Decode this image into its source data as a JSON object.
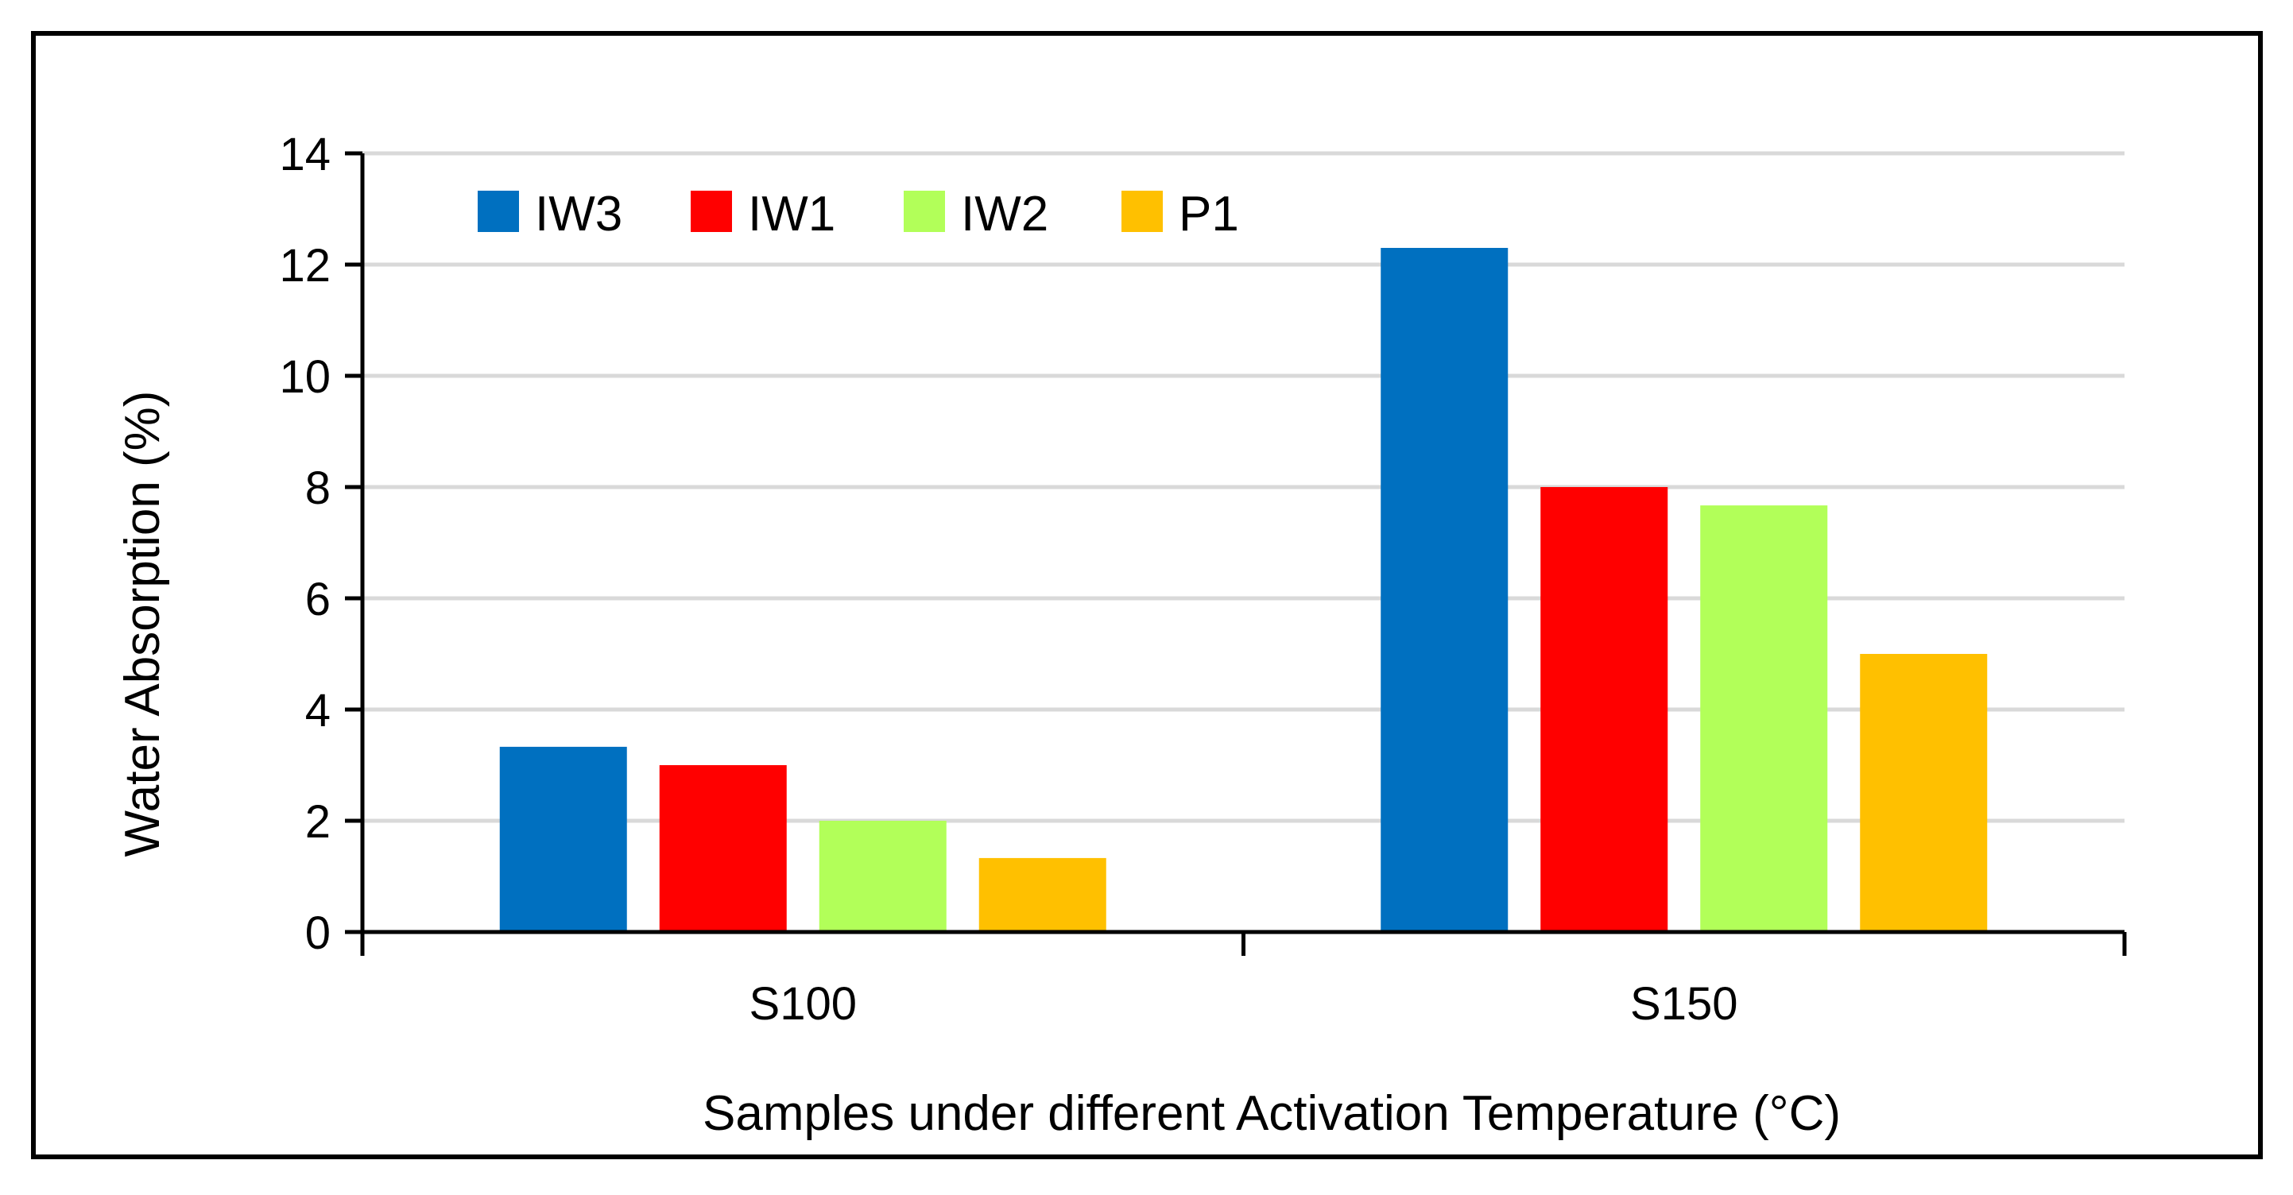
{
  "chart_data": {
    "type": "bar",
    "title": "",
    "xlabel": "Samples under different Activation Temperature (°C)",
    "ylabel": "Water Absorption (%)",
    "categories": [
      "S100",
      "S150"
    ],
    "series": [
      {
        "name": "IW3",
        "color": "#0070C0",
        "values": [
          3.33,
          12.3
        ]
      },
      {
        "name": "IW1",
        "color": "#FF0000",
        "values": [
          3.0,
          8.0
        ]
      },
      {
        "name": "IW2",
        "color": "#B2FF59",
        "values": [
          2.0,
          7.67
        ]
      },
      {
        "name": "P1",
        "color": "#FFC000",
        "values": [
          1.33,
          5.0
        ]
      }
    ],
    "ylim": [
      0,
      14
    ],
    "yticks": [
      "0",
      "2",
      "4",
      "6",
      "8",
      "10",
      "12",
      "14"
    ],
    "grid": true,
    "legend_position": "top-left"
  }
}
